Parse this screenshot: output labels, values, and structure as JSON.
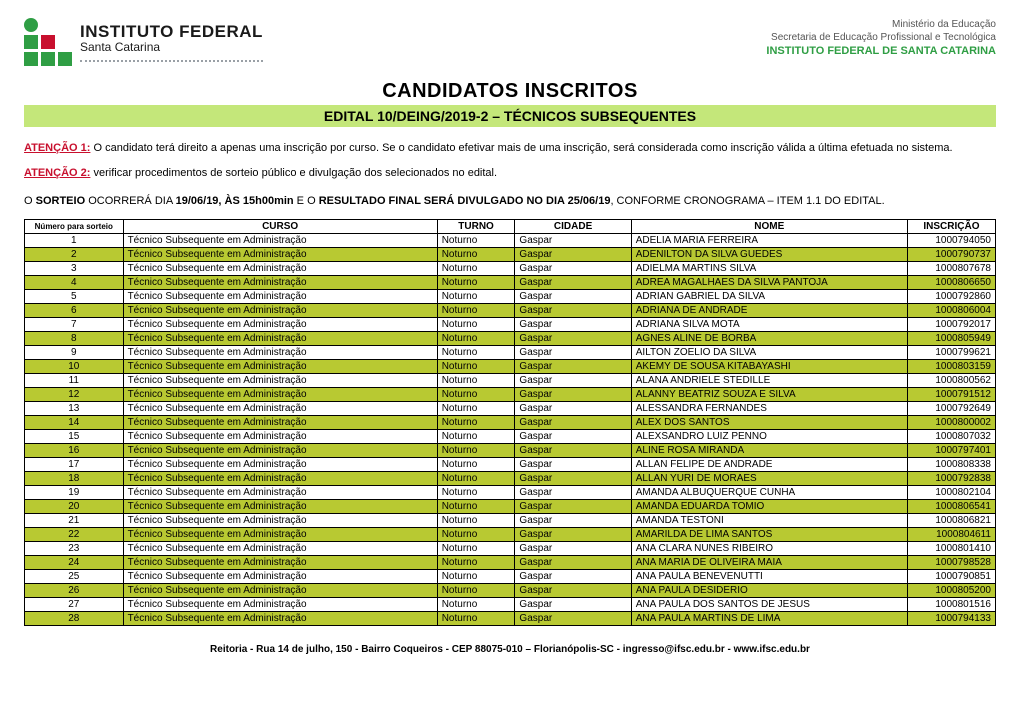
{
  "colors": {
    "row_highlight": "#b8c932",
    "subtitle_bg": "#c4e77a",
    "red": "#c8102e",
    "green": "#2f9e44"
  },
  "header": {
    "logo_line1": "INSTITUTO FEDERAL",
    "logo_line2": "Santa Catarina",
    "ministry_line1": "Ministério da Educação",
    "ministry_line2": "Secretaria de Educação Profissional e Tecnológica",
    "ministry_line3": "INSTITUTO FEDERAL DE SANTA CATARINA"
  },
  "title": "CANDIDATOS INSCRITOS",
  "subtitle": "EDITAL 10/DEING/2019-2 – TÉCNICOS SUBSEQUENTES",
  "notice1_label": "ATENÇÃO 1:",
  "notice1_text": " O candidato terá direito a apenas uma inscrição por curso. Se o candidato efetivar mais de uma inscrição, será considerada como inscrição válida a última efetuada no sistema.",
  "notice2_label": "ATENÇÃO 2:",
  "notice2_text": " verificar procedimentos de sorteio público e divulgação dos selecionados no edital.",
  "sorteio_prefix": "O ",
  "sorteio_b1": "SORTEIO",
  "sorteio_mid1": " OCORRERÁ DIA ",
  "sorteio_b2": "19/06/19, ÀS 15h00min",
  "sorteio_mid2": " E O ",
  "sorteio_b3": "RESULTADO FINAL SERÁ DIVULGADO NO DIA 25/06/19",
  "sorteio_suffix": ", CONFORME CRONOGRAMA – ITEM 1.1 DO EDITAL.",
  "table": {
    "columns": [
      "Número para sorteio",
      "CURSO",
      "TURNO",
      "CIDADE",
      "NOME",
      "INSCRIÇÃO"
    ],
    "curso": "Técnico Subsequente em Administração",
    "turno": "Noturno",
    "cidade": "Gaspar",
    "rows": [
      {
        "n": 1,
        "nome": "ADELIA MARIA FERREIRA",
        "insc": "1000794050"
      },
      {
        "n": 2,
        "nome": "ADENILTON DA SILVA GUEDES",
        "insc": "1000790737"
      },
      {
        "n": 3,
        "nome": "ADIELMA MARTINS SILVA",
        "insc": "1000807678"
      },
      {
        "n": 4,
        "nome": "ADREA MAGALHAES DA SILVA PANTOJA",
        "insc": "1000806650"
      },
      {
        "n": 5,
        "nome": "ADRIAN GABRIEL DA SILVA",
        "insc": "1000792860"
      },
      {
        "n": 6,
        "nome": "ADRIANA DE ANDRADE",
        "insc": "1000806004"
      },
      {
        "n": 7,
        "nome": "ADRIANA SILVA MOTA",
        "insc": "1000792017"
      },
      {
        "n": 8,
        "nome": "AGNES ALINE DE BORBA",
        "insc": "1000805949"
      },
      {
        "n": 9,
        "nome": "AILTON ZOELIO DA SILVA",
        "insc": "1000799621"
      },
      {
        "n": 10,
        "nome": "AKEMY DE SOUSA KITABAYASHI",
        "insc": "1000803159"
      },
      {
        "n": 11,
        "nome": "ALANA ANDRIELE STEDILLE",
        "insc": "1000800562"
      },
      {
        "n": 12,
        "nome": "ALANNY BEATRIZ SOUZA E SILVA",
        "insc": "1000791512"
      },
      {
        "n": 13,
        "nome": "ALESSANDRA FERNANDES",
        "insc": "1000792649"
      },
      {
        "n": 14,
        "nome": "ALEX DOS SANTOS",
        "insc": "1000800002"
      },
      {
        "n": 15,
        "nome": "ALEXSANDRO LUIZ PENNO",
        "insc": "1000807032"
      },
      {
        "n": 16,
        "nome": "ALINE ROSA MIRANDA",
        "insc": "1000797401"
      },
      {
        "n": 17,
        "nome": "ALLAN FELIPE DE ANDRADE",
        "insc": "1000808338"
      },
      {
        "n": 18,
        "nome": "ALLAN YURI DE MORAES",
        "insc": "1000792838"
      },
      {
        "n": 19,
        "nome": "AMANDA ALBUQUERQUE CUNHA",
        "insc": "1000802104"
      },
      {
        "n": 20,
        "nome": "AMANDA EDUARDA TOMIO",
        "insc": "1000806541"
      },
      {
        "n": 21,
        "nome": "AMANDA TESTONI",
        "insc": "1000806821"
      },
      {
        "n": 22,
        "nome": "AMARILDA DE LIMA SANTOS",
        "insc": "1000804611"
      },
      {
        "n": 23,
        "nome": "ANA CLARA NUNES RIBEIRO",
        "insc": "1000801410"
      },
      {
        "n": 24,
        "nome": "ANA MARIA DE OLIVEIRA MAIA",
        "insc": "1000798528"
      },
      {
        "n": 25,
        "nome": "ANA PAULA BENEVENUTTI",
        "insc": "1000790851"
      },
      {
        "n": 26,
        "nome": "ANA PAULA DESIDERIO",
        "insc": "1000805200"
      },
      {
        "n": 27,
        "nome": "ANA PAULA DOS SANTOS DE JESUS",
        "insc": "1000801516"
      },
      {
        "n": 28,
        "nome": "ANA PAULA MARTINS DE LIMA",
        "insc": "1000794133"
      }
    ]
  },
  "footer": "Reitoria - Rua 14 de julho, 150 - Bairro Coqueiros - CEP 88075-010 – Florianópolis-SC - ingresso@ifsc.edu.br - www.ifsc.edu.br"
}
